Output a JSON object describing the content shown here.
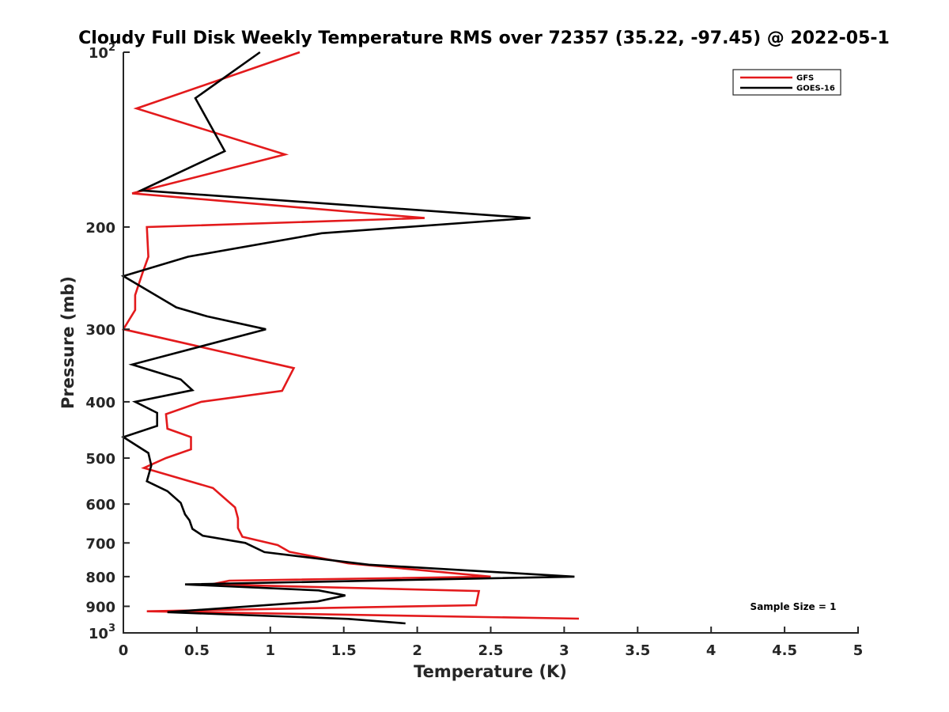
{
  "chart_data": {
    "type": "line",
    "title": "Cloudy Full Disk Weekly Temperature RMS over 72357 (35.22, -97.45) @ 2022-05-1",
    "xlabel": "Temperature (K)",
    "ylabel": "Pressure (mb)",
    "xlim": [
      0,
      5
    ],
    "ylim": [
      1000,
      100
    ],
    "y_scale": "log",
    "y_reversed": true,
    "x_ticks": [
      0,
      0.5,
      1,
      1.5,
      2,
      2.5,
      3,
      3.5,
      4,
      4.5,
      5
    ],
    "x_tick_labels": [
      "0",
      "0.5",
      "1",
      "1.5",
      "2",
      "2.5",
      "3",
      "3.5",
      "4",
      "4.5",
      "5"
    ],
    "y_ticks": [
      100,
      200,
      300,
      400,
      500,
      600,
      700,
      800,
      900,
      1000
    ],
    "y_tick_labels": [
      {
        "base": "10",
        "exp": "2"
      },
      {
        "base": "200"
      },
      {
        "base": "300"
      },
      {
        "base": "400"
      },
      {
        "base": "500"
      },
      {
        "base": "600"
      },
      {
        "base": "700"
      },
      {
        "base": "800"
      },
      {
        "base": "900"
      },
      {
        "base": "10",
        "exp": "3"
      }
    ],
    "legend_position": "top-right",
    "grid": false,
    "annotation": "Sample Size = 1",
    "series": [
      {
        "name": "GFS",
        "color": "#e31a1c",
        "points": [
          [
            1.2,
            100
          ],
          [
            0.09,
            125
          ],
          [
            1.1,
            150
          ],
          [
            0.06,
            175
          ],
          [
            2.05,
            193
          ],
          [
            0.16,
            200
          ],
          [
            0.17,
            225
          ],
          [
            0.13,
            240
          ],
          [
            0.08,
            262
          ],
          [
            0.08,
            278
          ],
          [
            0.0,
            300
          ],
          [
            1.16,
            350
          ],
          [
            1.08,
            383
          ],
          [
            0.53,
            400
          ],
          [
            0.29,
            420
          ],
          [
            0.3,
            445
          ],
          [
            0.46,
            460
          ],
          [
            0.46,
            483
          ],
          [
            0.29,
            500
          ],
          [
            0.14,
            520
          ],
          [
            0.61,
            563
          ],
          [
            0.76,
            608
          ],
          [
            0.78,
            635
          ],
          [
            0.78,
            660
          ],
          [
            0.81,
            683
          ],
          [
            1.05,
            706
          ],
          [
            1.13,
            725
          ],
          [
            1.53,
            759
          ],
          [
            2.5,
            800
          ],
          [
            0.72,
            813
          ],
          [
            0.6,
            825
          ],
          [
            2.42,
            847
          ],
          [
            2.4,
            896
          ],
          [
            0.16,
            918
          ],
          [
            3.1,
            945
          ]
        ]
      },
      {
        "name": "GOES-16",
        "color": "#000000",
        "points": [
          [
            0.93,
            100
          ],
          [
            0.49,
            120
          ],
          [
            0.69,
            148
          ],
          [
            0.12,
            173
          ],
          [
            2.77,
            193
          ],
          [
            1.35,
            205
          ],
          [
            0.44,
            225
          ],
          [
            0.0,
            243
          ],
          [
            0.36,
            275
          ],
          [
            0.57,
            285
          ],
          [
            0.97,
            300
          ],
          [
            0.06,
            345
          ],
          [
            0.39,
            366
          ],
          [
            0.47,
            382
          ],
          [
            0.08,
            400
          ],
          [
            0.23,
            418
          ],
          [
            0.23,
            440
          ],
          [
            0.0,
            460
          ],
          [
            0.17,
            490
          ],
          [
            0.19,
            515
          ],
          [
            0.16,
            548
          ],
          [
            0.3,
            570
          ],
          [
            0.39,
            597
          ],
          [
            0.42,
            625
          ],
          [
            0.45,
            640
          ],
          [
            0.47,
            662
          ],
          [
            0.54,
            680
          ],
          [
            0.83,
            700
          ],
          [
            0.96,
            726
          ],
          [
            1.67,
            763
          ],
          [
            3.07,
            800
          ],
          [
            0.42,
            825
          ],
          [
            1.33,
            845
          ],
          [
            1.51,
            862
          ],
          [
            1.32,
            883
          ],
          [
            0.3,
            921
          ],
          [
            1.53,
            946
          ],
          [
            1.92,
            963
          ]
        ]
      }
    ]
  }
}
